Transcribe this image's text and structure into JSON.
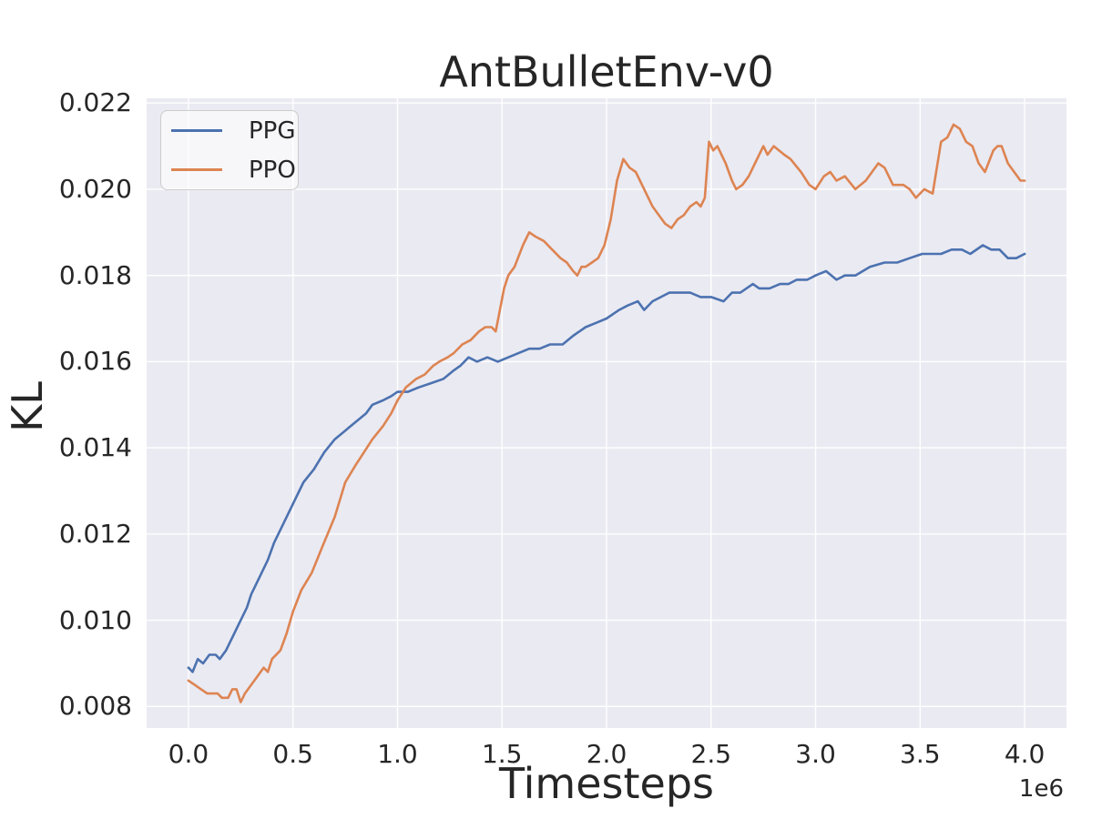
{
  "figure": {
    "title": "AntBulletEnv-v0",
    "xlabel": "Timesteps",
    "ylabel": "KL",
    "x_offset_label": "1e6",
    "plot_background": "#eaeaf2",
    "grid_color": "#ffffff",
    "text_color": "#262626"
  },
  "chart_data": {
    "type": "line",
    "title": "AntBulletEnv-v0",
    "xlabel": "Timesteps",
    "ylabel": "KL",
    "x_unit": "1e6 timesteps",
    "grid": true,
    "legend_position": "upper left",
    "xlim": [
      -0.2,
      4.2
    ],
    "ylim": [
      0.0075,
      0.02211
    ],
    "x_ticks": [
      {
        "v": 0.0,
        "label": "0.0"
      },
      {
        "v": 0.5,
        "label": "0.5"
      },
      {
        "v": 1.0,
        "label": "1.0"
      },
      {
        "v": 1.5,
        "label": "1.5"
      },
      {
        "v": 2.0,
        "label": "2.0"
      },
      {
        "v": 2.5,
        "label": "2.5"
      },
      {
        "v": 3.0,
        "label": "3.0"
      },
      {
        "v": 3.5,
        "label": "3.5"
      },
      {
        "v": 4.0,
        "label": "4.0"
      }
    ],
    "y_ticks": [
      {
        "v": 0.008,
        "label": "0.008"
      },
      {
        "v": 0.01,
        "label": "0.010"
      },
      {
        "v": 0.012,
        "label": "0.012"
      },
      {
        "v": 0.014,
        "label": "0.014"
      },
      {
        "v": 0.016,
        "label": "0.016"
      },
      {
        "v": 0.018,
        "label": "0.018"
      },
      {
        "v": 0.02,
        "label": "0.020"
      },
      {
        "v": 0.022,
        "label": "0.022"
      }
    ],
    "series": [
      {
        "name": "PPG",
        "color": "#4c72b0",
        "points": [
          [
            0.0,
            0.0089
          ],
          [
            0.02,
            0.0088
          ],
          [
            0.045,
            0.0091
          ],
          [
            0.07,
            0.009
          ],
          [
            0.1,
            0.0092
          ],
          [
            0.13,
            0.0092
          ],
          [
            0.15,
            0.0091
          ],
          [
            0.18,
            0.0093
          ],
          [
            0.21,
            0.0096
          ],
          [
            0.25,
            0.01
          ],
          [
            0.28,
            0.0103
          ],
          [
            0.3,
            0.0106
          ],
          [
            0.34,
            0.011
          ],
          [
            0.38,
            0.0114
          ],
          [
            0.41,
            0.0118
          ],
          [
            0.45,
            0.0122
          ],
          [
            0.5,
            0.0127
          ],
          [
            0.55,
            0.0132
          ],
          [
            0.6,
            0.0135
          ],
          [
            0.65,
            0.0139
          ],
          [
            0.7,
            0.0142
          ],
          [
            0.75,
            0.0144
          ],
          [
            0.8,
            0.0146
          ],
          [
            0.85,
            0.0148
          ],
          [
            0.88,
            0.015
          ],
          [
            0.93,
            0.0151
          ],
          [
            0.97,
            0.0152
          ],
          [
            1.0,
            0.0153
          ],
          [
            1.05,
            0.0153
          ],
          [
            1.1,
            0.0154
          ],
          [
            1.16,
            0.0155
          ],
          [
            1.22,
            0.0156
          ],
          [
            1.27,
            0.0158
          ],
          [
            1.3,
            0.0159
          ],
          [
            1.34,
            0.0161
          ],
          [
            1.38,
            0.016
          ],
          [
            1.43,
            0.0161
          ],
          [
            1.48,
            0.016
          ],
          [
            1.53,
            0.0161
          ],
          [
            1.58,
            0.0162
          ],
          [
            1.63,
            0.0163
          ],
          [
            1.68,
            0.0163
          ],
          [
            1.73,
            0.0164
          ],
          [
            1.79,
            0.0164
          ],
          [
            1.84,
            0.0166
          ],
          [
            1.9,
            0.0168
          ],
          [
            1.95,
            0.0169
          ],
          [
            2.0,
            0.017
          ],
          [
            2.06,
            0.0172
          ],
          [
            2.1,
            0.0173
          ],
          [
            2.15,
            0.0174
          ],
          [
            2.18,
            0.0172
          ],
          [
            2.22,
            0.0174
          ],
          [
            2.26,
            0.0175
          ],
          [
            2.3,
            0.0176
          ],
          [
            2.35,
            0.0176
          ],
          [
            2.4,
            0.0176
          ],
          [
            2.45,
            0.0175
          ],
          [
            2.5,
            0.0175
          ],
          [
            2.56,
            0.0174
          ],
          [
            2.6,
            0.0176
          ],
          [
            2.64,
            0.0176
          ],
          [
            2.7,
            0.0178
          ],
          [
            2.73,
            0.0177
          ],
          [
            2.78,
            0.0177
          ],
          [
            2.83,
            0.0178
          ],
          [
            2.87,
            0.0178
          ],
          [
            2.91,
            0.0179
          ],
          [
            2.96,
            0.0179
          ],
          [
            3.0,
            0.018
          ],
          [
            3.05,
            0.0181
          ],
          [
            3.1,
            0.0179
          ],
          [
            3.14,
            0.018
          ],
          [
            3.19,
            0.018
          ],
          [
            3.26,
            0.0182
          ],
          [
            3.33,
            0.0183
          ],
          [
            3.39,
            0.0183
          ],
          [
            3.45,
            0.0184
          ],
          [
            3.51,
            0.0185
          ],
          [
            3.55,
            0.0185
          ],
          [
            3.6,
            0.0185
          ],
          [
            3.65,
            0.0186
          ],
          [
            3.7,
            0.0186
          ],
          [
            3.74,
            0.0185
          ],
          [
            3.8,
            0.0187
          ],
          [
            3.84,
            0.0186
          ],
          [
            3.88,
            0.0186
          ],
          [
            3.92,
            0.0184
          ],
          [
            3.96,
            0.0184
          ],
          [
            4.0,
            0.0185
          ]
        ]
      },
      {
        "name": "PPO",
        "color": "#dd8452",
        "points": [
          [
            0.0,
            0.0086
          ],
          [
            0.03,
            0.0085
          ],
          [
            0.06,
            0.0084
          ],
          [
            0.09,
            0.0083
          ],
          [
            0.12,
            0.0083
          ],
          [
            0.14,
            0.0083
          ],
          [
            0.16,
            0.0082
          ],
          [
            0.19,
            0.0082
          ],
          [
            0.21,
            0.0084
          ],
          [
            0.23,
            0.0084
          ],
          [
            0.25,
            0.0081
          ],
          [
            0.27,
            0.0083
          ],
          [
            0.3,
            0.0085
          ],
          [
            0.33,
            0.0087
          ],
          [
            0.36,
            0.0089
          ],
          [
            0.38,
            0.0088
          ],
          [
            0.4,
            0.0091
          ],
          [
            0.44,
            0.0093
          ],
          [
            0.47,
            0.0097
          ],
          [
            0.5,
            0.0102
          ],
          [
            0.54,
            0.0107
          ],
          [
            0.59,
            0.0111
          ],
          [
            0.64,
            0.0117
          ],
          [
            0.7,
            0.0124
          ],
          [
            0.75,
            0.0132
          ],
          [
            0.8,
            0.0136
          ],
          [
            0.84,
            0.0139
          ],
          [
            0.88,
            0.0142
          ],
          [
            0.93,
            0.0145
          ],
          [
            0.97,
            0.0148
          ],
          [
            1.0,
            0.0151
          ],
          [
            1.04,
            0.0154
          ],
          [
            1.09,
            0.0156
          ],
          [
            1.13,
            0.0157
          ],
          [
            1.17,
            0.0159
          ],
          [
            1.2,
            0.016
          ],
          [
            1.24,
            0.0161
          ],
          [
            1.27,
            0.0162
          ],
          [
            1.31,
            0.0164
          ],
          [
            1.35,
            0.0165
          ],
          [
            1.39,
            0.0167
          ],
          [
            1.42,
            0.0168
          ],
          [
            1.45,
            0.0168
          ],
          [
            1.47,
            0.0167
          ],
          [
            1.49,
            0.0172
          ],
          [
            1.51,
            0.0177
          ],
          [
            1.53,
            0.018
          ],
          [
            1.56,
            0.0182
          ],
          [
            1.6,
            0.0187
          ],
          [
            1.63,
            0.019
          ],
          [
            1.66,
            0.0189
          ],
          [
            1.7,
            0.0188
          ],
          [
            1.74,
            0.0186
          ],
          [
            1.78,
            0.0184
          ],
          [
            1.81,
            0.0183
          ],
          [
            1.84,
            0.0181
          ],
          [
            1.86,
            0.018
          ],
          [
            1.88,
            0.0182
          ],
          [
            1.9,
            0.0182
          ],
          [
            1.93,
            0.0183
          ],
          [
            1.96,
            0.0184
          ],
          [
            1.99,
            0.0187
          ],
          [
            2.02,
            0.0193
          ],
          [
            2.05,
            0.0202
          ],
          [
            2.08,
            0.0207
          ],
          [
            2.11,
            0.0205
          ],
          [
            2.14,
            0.0204
          ],
          [
            2.16,
            0.0202
          ],
          [
            2.19,
            0.0199
          ],
          [
            2.22,
            0.0196
          ],
          [
            2.25,
            0.0194
          ],
          [
            2.28,
            0.0192
          ],
          [
            2.31,
            0.0191
          ],
          [
            2.34,
            0.0193
          ],
          [
            2.37,
            0.0194
          ],
          [
            2.4,
            0.0196
          ],
          [
            2.43,
            0.0197
          ],
          [
            2.45,
            0.0196
          ],
          [
            2.47,
            0.0198
          ],
          [
            2.49,
            0.0211
          ],
          [
            2.51,
            0.0209
          ],
          [
            2.53,
            0.021
          ],
          [
            2.57,
            0.0206
          ],
          [
            2.6,
            0.0202
          ],
          [
            2.62,
            0.02
          ],
          [
            2.65,
            0.0201
          ],
          [
            2.68,
            0.0203
          ],
          [
            2.71,
            0.0206
          ],
          [
            2.75,
            0.021
          ],
          [
            2.77,
            0.0208
          ],
          [
            2.8,
            0.021
          ],
          [
            2.85,
            0.0208
          ],
          [
            2.88,
            0.0207
          ],
          [
            2.93,
            0.0204
          ],
          [
            2.97,
            0.0201
          ],
          [
            3.0,
            0.02
          ],
          [
            3.04,
            0.0203
          ],
          [
            3.07,
            0.0204
          ],
          [
            3.1,
            0.0202
          ],
          [
            3.14,
            0.0203
          ],
          [
            3.19,
            0.02
          ],
          [
            3.24,
            0.0202
          ],
          [
            3.3,
            0.0206
          ],
          [
            3.33,
            0.0205
          ],
          [
            3.37,
            0.0201
          ],
          [
            3.42,
            0.0201
          ],
          [
            3.45,
            0.02
          ],
          [
            3.48,
            0.0198
          ],
          [
            3.52,
            0.02
          ],
          [
            3.56,
            0.0199
          ],
          [
            3.6,
            0.0211
          ],
          [
            3.63,
            0.0212
          ],
          [
            3.66,
            0.0215
          ],
          [
            3.69,
            0.0214
          ],
          [
            3.72,
            0.0211
          ],
          [
            3.75,
            0.021
          ],
          [
            3.78,
            0.0206
          ],
          [
            3.81,
            0.0204
          ],
          [
            3.85,
            0.0209
          ],
          [
            3.87,
            0.021
          ],
          [
            3.89,
            0.021
          ],
          [
            3.92,
            0.0206
          ],
          [
            3.95,
            0.0204
          ],
          [
            3.98,
            0.0202
          ],
          [
            4.0,
            0.0202
          ]
        ]
      }
    ]
  }
}
